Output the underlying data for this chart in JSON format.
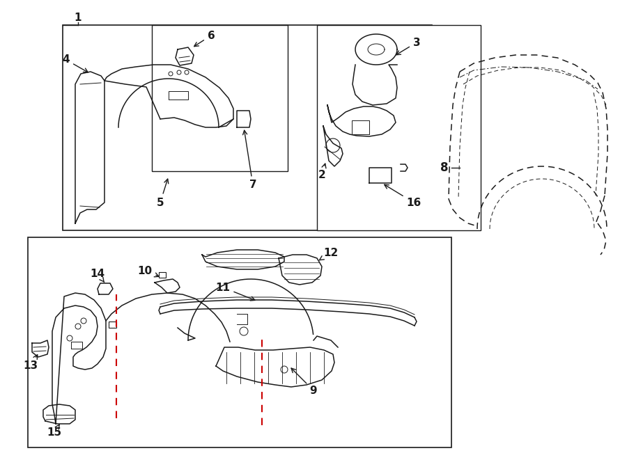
{
  "bg_color": "#ffffff",
  "lc": "#1a1a1a",
  "red": "#cc0000",
  "fig_w": 9.0,
  "fig_h": 6.61,
  "dpi": 100,
  "label_fs": 11
}
